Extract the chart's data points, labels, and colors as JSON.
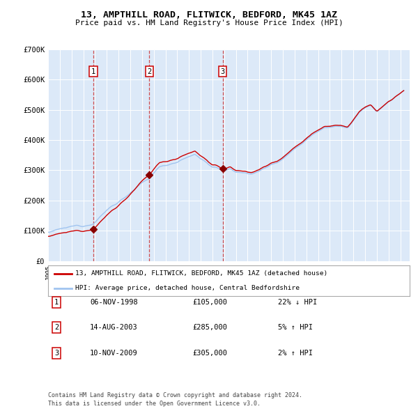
{
  "title": "13, AMPTHILL ROAD, FLITWICK, BEDFORD, MK45 1AZ",
  "subtitle": "Price paid vs. HM Land Registry's House Price Index (HPI)",
  "ylim": [
    0,
    700000
  ],
  "yticks": [
    0,
    100000,
    200000,
    300000,
    400000,
    500000,
    600000,
    700000
  ],
  "ytick_labels": [
    "£0",
    "£100K",
    "£200K",
    "£300K",
    "£400K",
    "£500K",
    "£600K",
    "£700K"
  ],
  "xlim_start": 1995.0,
  "xlim_end": 2025.8,
  "bg_color": "#dce9f8",
  "line_color_hpi": "#a0c4f0",
  "line_color_price": "#cc0000",
  "marker_color": "#880000",
  "vline_color": "#cc3333",
  "purchase_times": [
    1998.854,
    2003.621,
    2009.872
  ],
  "purchase_prices": [
    105000,
    285000,
    305000
  ],
  "purchase_labels": [
    "1",
    "2",
    "3"
  ],
  "legend_price_label": "13, AMPTHILL ROAD, FLITWICK, BEDFORD, MK45 1AZ (detached house)",
  "legend_hpi_label": "HPI: Average price, detached house, Central Bedfordshire",
  "footer_line1": "Contains HM Land Registry data © Crown copyright and database right 2024.",
  "footer_line2": "This data is licensed under the Open Government Licence v3.0.",
  "table_rows": [
    [
      "1",
      "06-NOV-1998",
      "£105,000",
      "22% ↓ HPI"
    ],
    [
      "2",
      "14-AUG-2003",
      "£285,000",
      "5% ↑ HPI"
    ],
    [
      "3",
      "10-NOV-2009",
      "£305,000",
      "2% ↑ HPI"
    ]
  ]
}
